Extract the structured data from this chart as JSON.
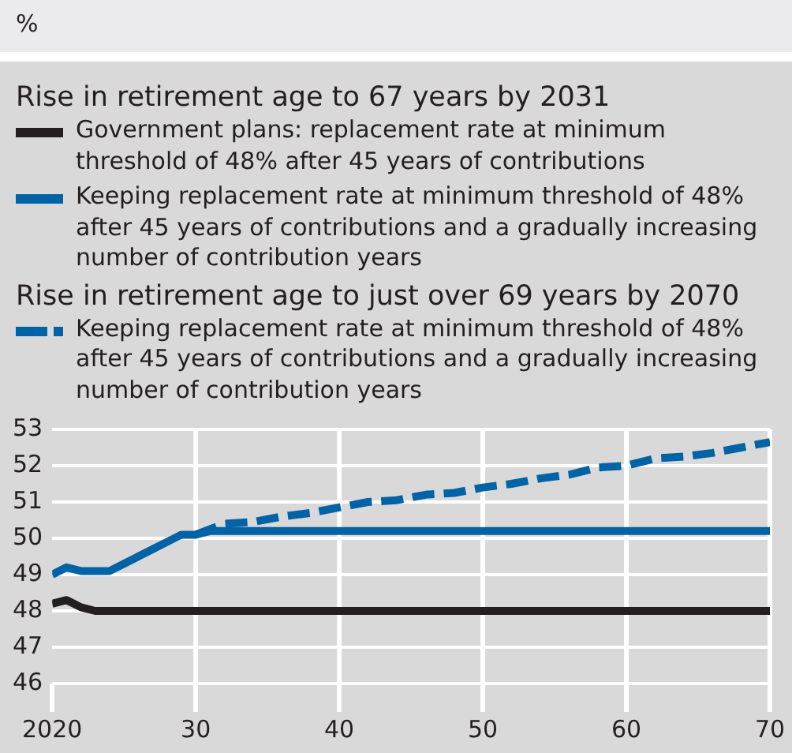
{
  "chart_data": {
    "type": "line",
    "annotations": [
      "%",
      "Rise in retirement age to 67 years by 2031",
      "Rise in retirement age to just over 69 years by 2070"
    ],
    "x": [
      2020,
      2021,
      2022,
      2023,
      2024,
      2025,
      2026,
      2027,
      2028,
      2029,
      2030,
      2031,
      2035,
      2040,
      2045,
      2050,
      2055,
      2060,
      2065,
      2070
    ],
    "series": [
      {
        "name": "Government plans: replacement rate at minimum threshold of 48% after 45 years of contributions",
        "color": "#231f20",
        "values": [
          48.2,
          48.3,
          48.1,
          48.0,
          48.0,
          48.0,
          48.0,
          48.0,
          48.0,
          48.0,
          48.0,
          48.0,
          48.0,
          48.0,
          48.0,
          48.0,
          48.0,
          48.0,
          48.0,
          48.0
        ]
      },
      {
        "name": "Keeping replacement rate at minimum threshold of 48% after 45 years of contributions and a gradually increasing number of contribution years",
        "color": "#0063a6",
        "values": [
          49.0,
          49.2,
          49.1,
          49.1,
          49.1,
          49.3,
          49.5,
          49.7,
          49.9,
          50.1,
          50.1,
          50.2,
          50.2,
          50.2,
          50.2,
          50.2,
          50.2,
          50.2,
          50.2,
          50.2
        ]
      },
      {
        "name": "Keeping replacement rate at minimum threshold of 48% after 45 years of contributions and a gradually increasing number of contribution years",
        "color": "#0063a6",
        "line_style": "dashed",
        "x": [
          2030,
          2031,
          2032,
          2034,
          2036,
          2038,
          2040,
          2042,
          2044,
          2046,
          2048,
          2050,
          2052,
          2054,
          2056,
          2058,
          2060,
          2062,
          2064,
          2066,
          2068,
          2070
        ],
        "values": [
          50.1,
          50.25,
          50.4,
          50.45,
          50.6,
          50.7,
          50.85,
          51.0,
          51.05,
          51.2,
          51.25,
          51.4,
          51.5,
          51.65,
          51.75,
          51.95,
          52.0,
          52.2,
          52.25,
          52.35,
          52.5,
          52.65
        ]
      }
    ],
    "xlim": [
      2020,
      2070
    ],
    "xticks": [
      2020,
      {
        "value": 2030,
        "label": "30"
      },
      {
        "value": 2040,
        "label": "40"
      },
      {
        "value": 2050,
        "label": "50"
      },
      {
        "value": 2060,
        "label": "60"
      },
      {
        "value": 2070,
        "label": "70"
      }
    ],
    "ylim": [
      46,
      53
    ],
    "yticks": [
      46,
      47,
      48,
      49,
      50,
      51,
      52,
      53
    ],
    "grid": true,
    "legend": "top",
    "marker": "none"
  }
}
